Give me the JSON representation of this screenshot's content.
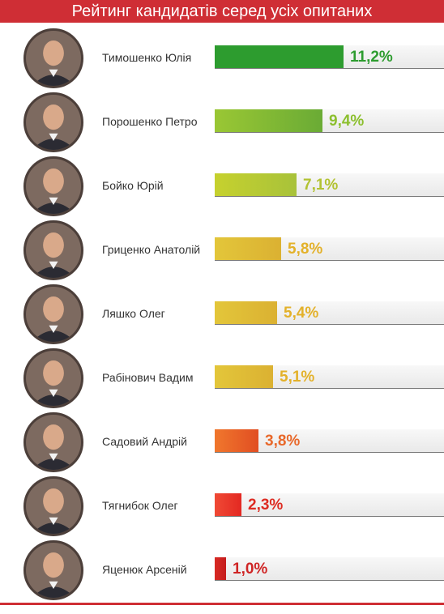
{
  "header": {
    "title": "Рейтинг кандидатів серед усіх опитаних"
  },
  "chart_data": {
    "type": "bar",
    "orientation": "horizontal",
    "title": "Рейтинг кандидатів серед усіх опитаних",
    "categories": [
      "Тимошенко Юлія",
      "Порошенко Петро",
      "Бойко Юрій",
      "Гриценко Анатолій",
      "Ляшко Олег",
      "Рабінович Вадим",
      "Садовий Андрій",
      "Тягнибок Олег",
      "Яценюк Арсеній"
    ],
    "values": [
      11.2,
      9.4,
      7.1,
      5.8,
      5.4,
      5.1,
      3.8,
      2.3,
      1.0
    ],
    "labels": [
      "11,2%",
      "9,4%",
      "7,1%",
      "5,8%",
      "5,4%",
      "5,1%",
      "3,8%",
      "2,3%",
      "1,0%"
    ],
    "xlim": [
      0,
      11.2
    ],
    "bar_colors": [
      [
        "#2d9c2f",
        "#2d9c2f"
      ],
      [
        "#9ac734",
        "#6aab35"
      ],
      [
        "#c6d12e",
        "#a8c23a"
      ],
      [
        "#e3c63a",
        "#dbb132"
      ],
      [
        "#e3c63a",
        "#dbb132"
      ],
      [
        "#e3c63a",
        "#dbb132"
      ],
      [
        "#f0772d",
        "#e14e22"
      ],
      [
        "#f04a35",
        "#e32822"
      ],
      [
        "#d82a24",
        "#c41c1c"
      ]
    ],
    "label_colors": [
      "#2d9c2f",
      "#8cbf2e",
      "#b2c232",
      "#e3b12a",
      "#e3b12a",
      "#e3b12a",
      "#e8682a",
      "#dd2b22",
      "#cf2525"
    ],
    "grid": false,
    "legend": "none"
  }
}
